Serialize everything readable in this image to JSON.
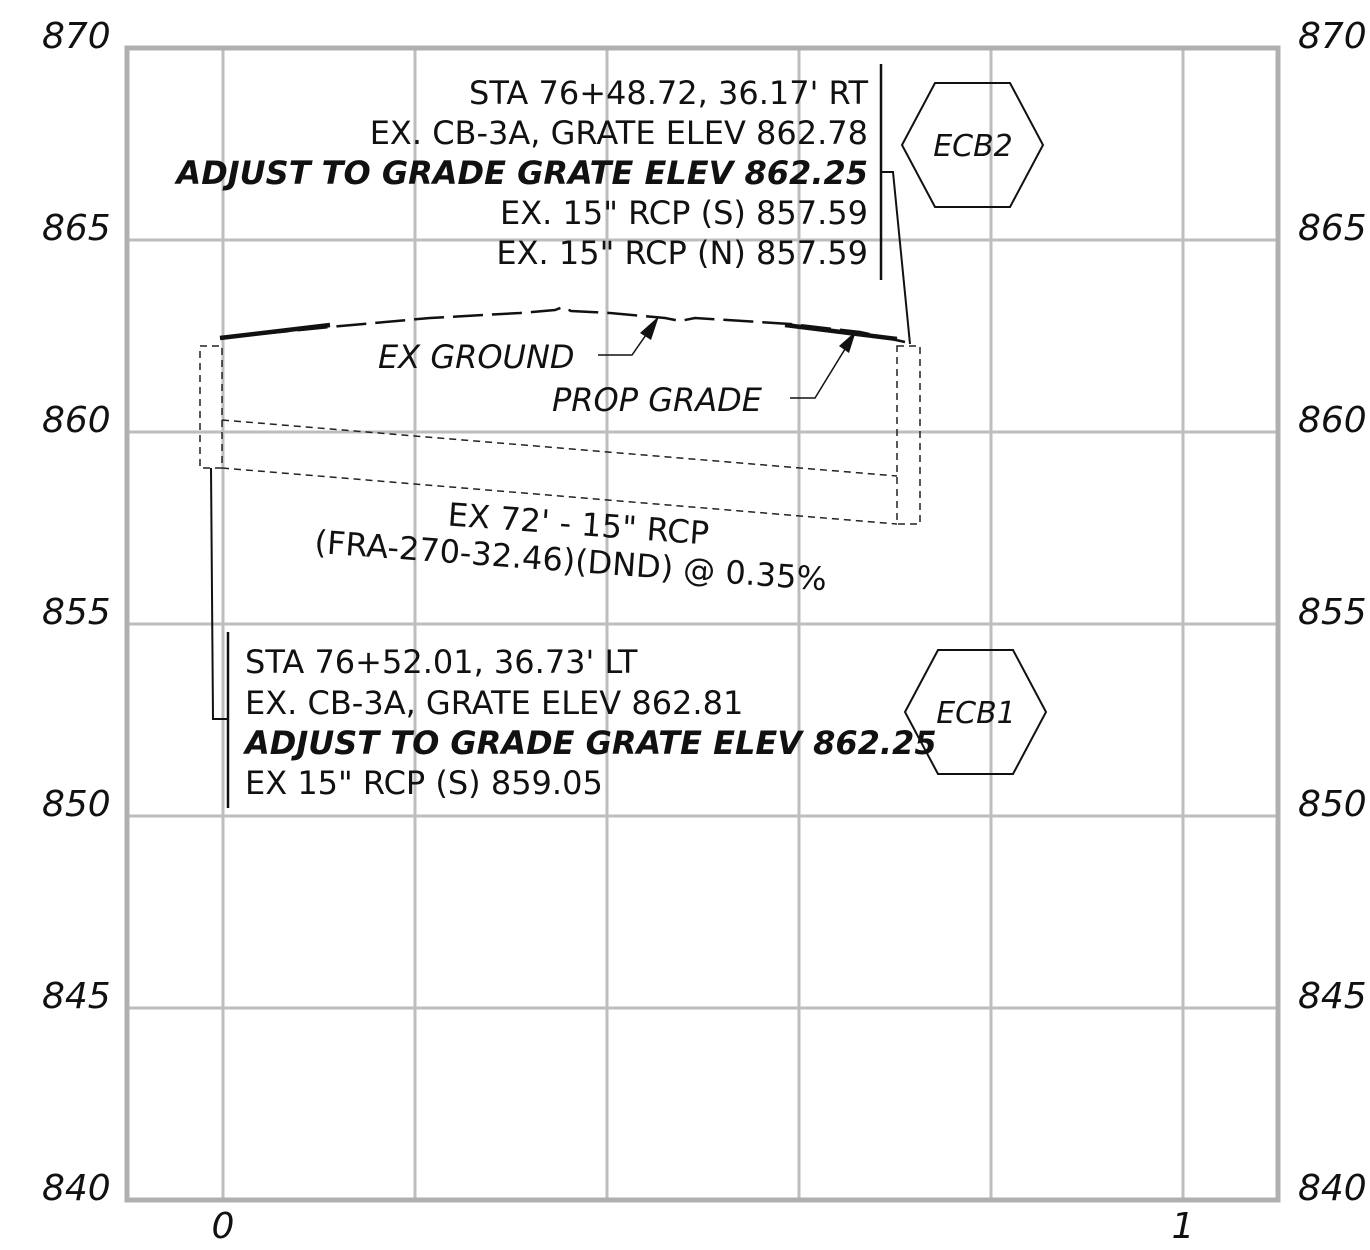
{
  "axes": {
    "y_ticks_left": [
      "870",
      "865",
      "860",
      "855",
      "850",
      "845",
      "840"
    ],
    "y_ticks_right": [
      "870",
      "865",
      "860",
      "855",
      "850",
      "845",
      "840"
    ],
    "x_ticks": [
      "0",
      "1"
    ]
  },
  "ecb2": {
    "tag": "ECB2",
    "lines": [
      "STA 76+48.72, 36.17' RT",
      "EX. CB-3A, GRATE ELEV 862.78",
      "ADJUST TO GRADE GRATE ELEV 862.25",
      "EX. 15\" RCP (S) 857.59",
      "EX. 15\" RCP (N) 857.59"
    ]
  },
  "ecb1": {
    "tag": "ECB1",
    "lines": [
      "STA 76+52.01, 36.73' LT",
      "EX. CB-3A, GRATE ELEV 862.81",
      "ADJUST TO GRADE GRATE ELEV 862.25",
      "EX 15\" RCP (S) 859.05"
    ]
  },
  "labels": {
    "ex_ground": "EX GROUND",
    "prop_grade": "PROP GRADE"
  },
  "pipe": {
    "line1": "EX 72' - 15\" RCP",
    "line2": "(FRA-270-32.46)(DND) @  0.35%"
  }
}
